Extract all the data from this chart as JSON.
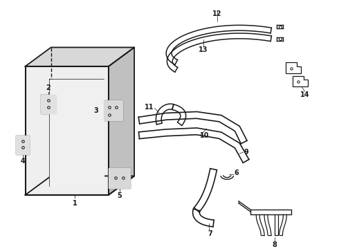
{
  "bg_color": "#ffffff",
  "line_color": "#1a1a1a",
  "lw": 1.0,
  "figsize": [
    4.9,
    3.6
  ],
  "dpi": 100
}
